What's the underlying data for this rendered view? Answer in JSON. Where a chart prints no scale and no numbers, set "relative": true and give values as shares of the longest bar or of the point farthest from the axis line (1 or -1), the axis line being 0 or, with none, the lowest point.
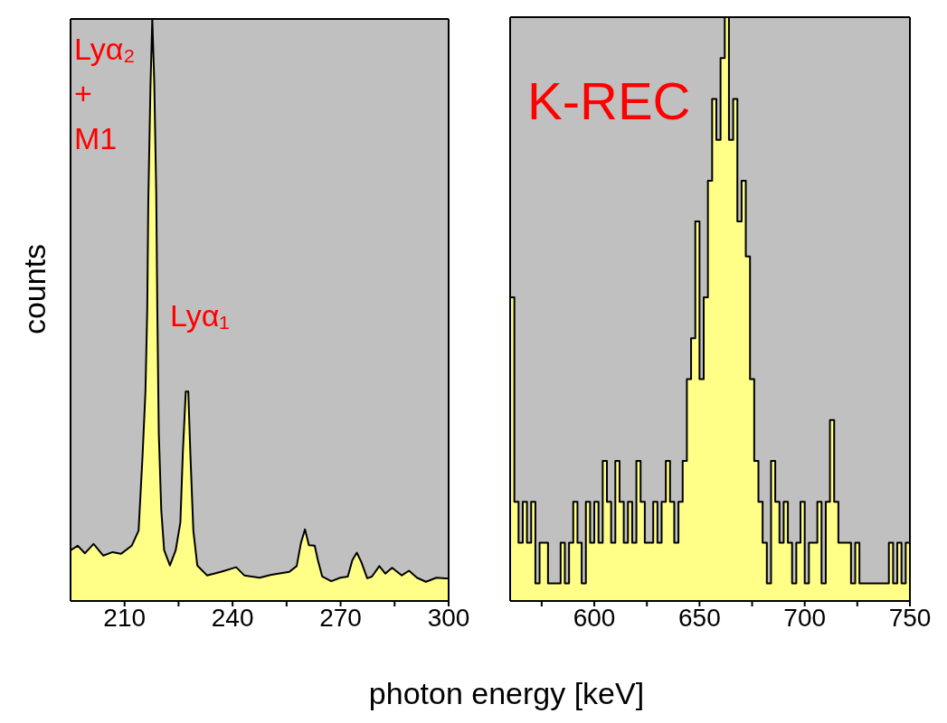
{
  "chart_data": [
    {
      "type": "area",
      "relative": true,
      "xlabel": "photon energy [keV]",
      "ylabel": "counts",
      "xlim": [
        195,
        300
      ],
      "xticks": [
        210,
        {
          "value": 225,
          "label": null
        },
        240,
        {
          "value": 255,
          "label": null
        },
        270,
        {
          "value": 285,
          "label": null
        },
        300
      ],
      "annotations": [
        "Lyα₂\n+\nM1",
        "Lyα₁"
      ],
      "series": [
        {
          "color": "#ffff88",
          "x": [
            195,
            197,
            199,
            201.4,
            204.1,
            206.7,
            209,
            212,
            213.9,
            215,
            215.8,
            216.3,
            216.6,
            217.2,
            217.7,
            218.25,
            218.8,
            219.1,
            219.5,
            220.2,
            221,
            222.6,
            224.2,
            225.5,
            226.2,
            227,
            227.7,
            228.25,
            229.1,
            230.2,
            232.9,
            236.75,
            241,
            243.25,
            247.5,
            250.75,
            255.75,
            257.8,
            259,
            260.1,
            261.2,
            262.8,
            263.7,
            264.9,
            267.4,
            269.9,
            272,
            273.25,
            274.5,
            275.75,
            277.4,
            278.7,
            280.75,
            282.4,
            284.3,
            287,
            289,
            291.2,
            293.7,
            296.6,
            299.1,
            300
          ],
          "values": [
            0.087,
            0.095,
            0.082,
            0.098,
            0.078,
            0.084,
            0.081,
            0.095,
            0.121,
            0.25,
            0.36,
            0.5,
            0.69,
            0.885,
            1,
            0.89,
            0.7,
            0.5,
            0.29,
            0.155,
            0.087,
            0.061,
            0.087,
            0.135,
            0.257,
            0.36,
            0.36,
            0.257,
            0.121,
            0.061,
            0.044,
            0.05,
            0.058,
            0.044,
            0.04,
            0.045,
            0.05,
            0.06,
            0.1,
            0.123,
            0.096,
            0.095,
            0.07,
            0.042,
            0.034,
            0.04,
            0.042,
            0.07,
            0.083,
            0.067,
            0.039,
            0.042,
            0.06,
            0.047,
            0.057,
            0.044,
            0.052,
            0.04,
            0.033,
            0.04,
            0.039,
            0.039
          ]
        }
      ]
    },
    {
      "type": "area",
      "relative": true,
      "xlim": [
        560,
        750
      ],
      "xticks": [
        {
          "value": 575,
          "label": null
        },
        600,
        {
          "value": 625,
          "label": null
        },
        650,
        {
          "value": 675,
          "label": null
        },
        700,
        {
          "value": 725,
          "label": null
        },
        750
      ],
      "annotations": [
        "K-REC"
      ],
      "series": [
        {
          "color": "#ffff88",
          "x": [
            560,
            562,
            562,
            564,
            564,
            566,
            566,
            568,
            568,
            570,
            570,
            572,
            572,
            574,
            574,
            576,
            576,
            578,
            578,
            580,
            580,
            582,
            582,
            584,
            584,
            586,
            586,
            588,
            588,
            590,
            590,
            592,
            592,
            594,
            594,
            596,
            596,
            598,
            598,
            600,
            600,
            602,
            602,
            604,
            604,
            606,
            606,
            608,
            608,
            610,
            610,
            612,
            612,
            614,
            614,
            616,
            616,
            618,
            618,
            620,
            620,
            622,
            622,
            624,
            624,
            626,
            626,
            628,
            628,
            630,
            630,
            632,
            632,
            634,
            634,
            636,
            636,
            638,
            638,
            640,
            640,
            642,
            642,
            644,
            644,
            646,
            646,
            648,
            648,
            650,
            650,
            652,
            652,
            654,
            654,
            656,
            656,
            658,
            658,
            660,
            660,
            662,
            662,
            664,
            664,
            666,
            666,
            668,
            668,
            670,
            670,
            672,
            672,
            674,
            674,
            676,
            676,
            678,
            678,
            680,
            680,
            682,
            682,
            684,
            684,
            686,
            686,
            688,
            688,
            690,
            690,
            692,
            692,
            694,
            694,
            696,
            696,
            698,
            698,
            700,
            700,
            702,
            702,
            704,
            704,
            706,
            706,
            708,
            708,
            710,
            710,
            712,
            712,
            714,
            714,
            716,
            716,
            718,
            718,
            720,
            720,
            722,
            722,
            724,
            724,
            726,
            726,
            728,
            728,
            730,
            730,
            732,
            732,
            734,
            734,
            736,
            736,
            738,
            738,
            740,
            740,
            742,
            742,
            744,
            744,
            746,
            746,
            748,
            748,
            750
          ],
          "values": [
            0.52,
            0.52,
            0.17,
            0.17,
            0.1,
            0.1,
            0.17,
            0.17,
            0.1,
            0.1,
            0.17,
            0.17,
            0.03,
            0.03,
            0.1,
            0.1,
            0.1,
            0.1,
            0.03,
            0.03,
            0.03,
            0.03,
            0.03,
            0.03,
            0.1,
            0.1,
            0.03,
            0.03,
            0.1,
            0.1,
            0.17,
            0.17,
            0.1,
            0.1,
            0.03,
            0.03,
            0.17,
            0.17,
            0.1,
            0.1,
            0.17,
            0.17,
            0.1,
            0.1,
            0.24,
            0.24,
            0.17,
            0.17,
            0.1,
            0.1,
            0.24,
            0.24,
            0.17,
            0.17,
            0.1,
            0.1,
            0.17,
            0.17,
            0.1,
            0.1,
            0.24,
            0.24,
            0.17,
            0.17,
            0.1,
            0.1,
            0.1,
            0.1,
            0.17,
            0.17,
            0.1,
            0.1,
            0.17,
            0.17,
            0.24,
            0.24,
            0.17,
            0.17,
            0.1,
            0.1,
            0.17,
            0.17,
            0.24,
            0.24,
            0.38,
            0.38,
            0.45,
            0.45,
            0.65,
            0.65,
            0.38,
            0.38,
            0.52,
            0.52,
            0.72,
            0.72,
            0.86,
            0.86,
            0.79,
            0.79,
            0.93,
            0.93,
            1,
            1,
            0.79,
            0.79,
            0.86,
            0.86,
            0.65,
            0.65,
            0.72,
            0.72,
            0.59,
            0.59,
            0.38,
            0.38,
            0.24,
            0.24,
            0.17,
            0.17,
            0.1,
            0.1,
            0.03,
            0.03,
            0.24,
            0.24,
            0.17,
            0.17,
            0.1,
            0.1,
            0.17,
            0.17,
            0.1,
            0.1,
            0.03,
            0.03,
            0.1,
            0.1,
            0.17,
            0.17,
            0.03,
            0.03,
            0.1,
            0.1,
            0.1,
            0.1,
            0.17,
            0.17,
            0.03,
            0.03,
            0.17,
            0.17,
            0.31,
            0.31,
            0.17,
            0.17,
            0.1,
            0.1,
            0.1,
            0.1,
            0.1,
            0.1,
            0.03,
            0.03,
            0.1,
            0.1,
            0.03,
            0.03,
            0.03,
            0.03,
            0.03,
            0.03,
            0.03,
            0.03,
            0.03,
            0.03,
            0.03,
            0.03,
            0.03,
            0.03,
            0.1,
            0.1,
            0.03,
            0.03,
            0.1,
            0.1,
            0.03,
            0.03,
            0.1,
            0.1
          ]
        }
      ]
    }
  ]
}
